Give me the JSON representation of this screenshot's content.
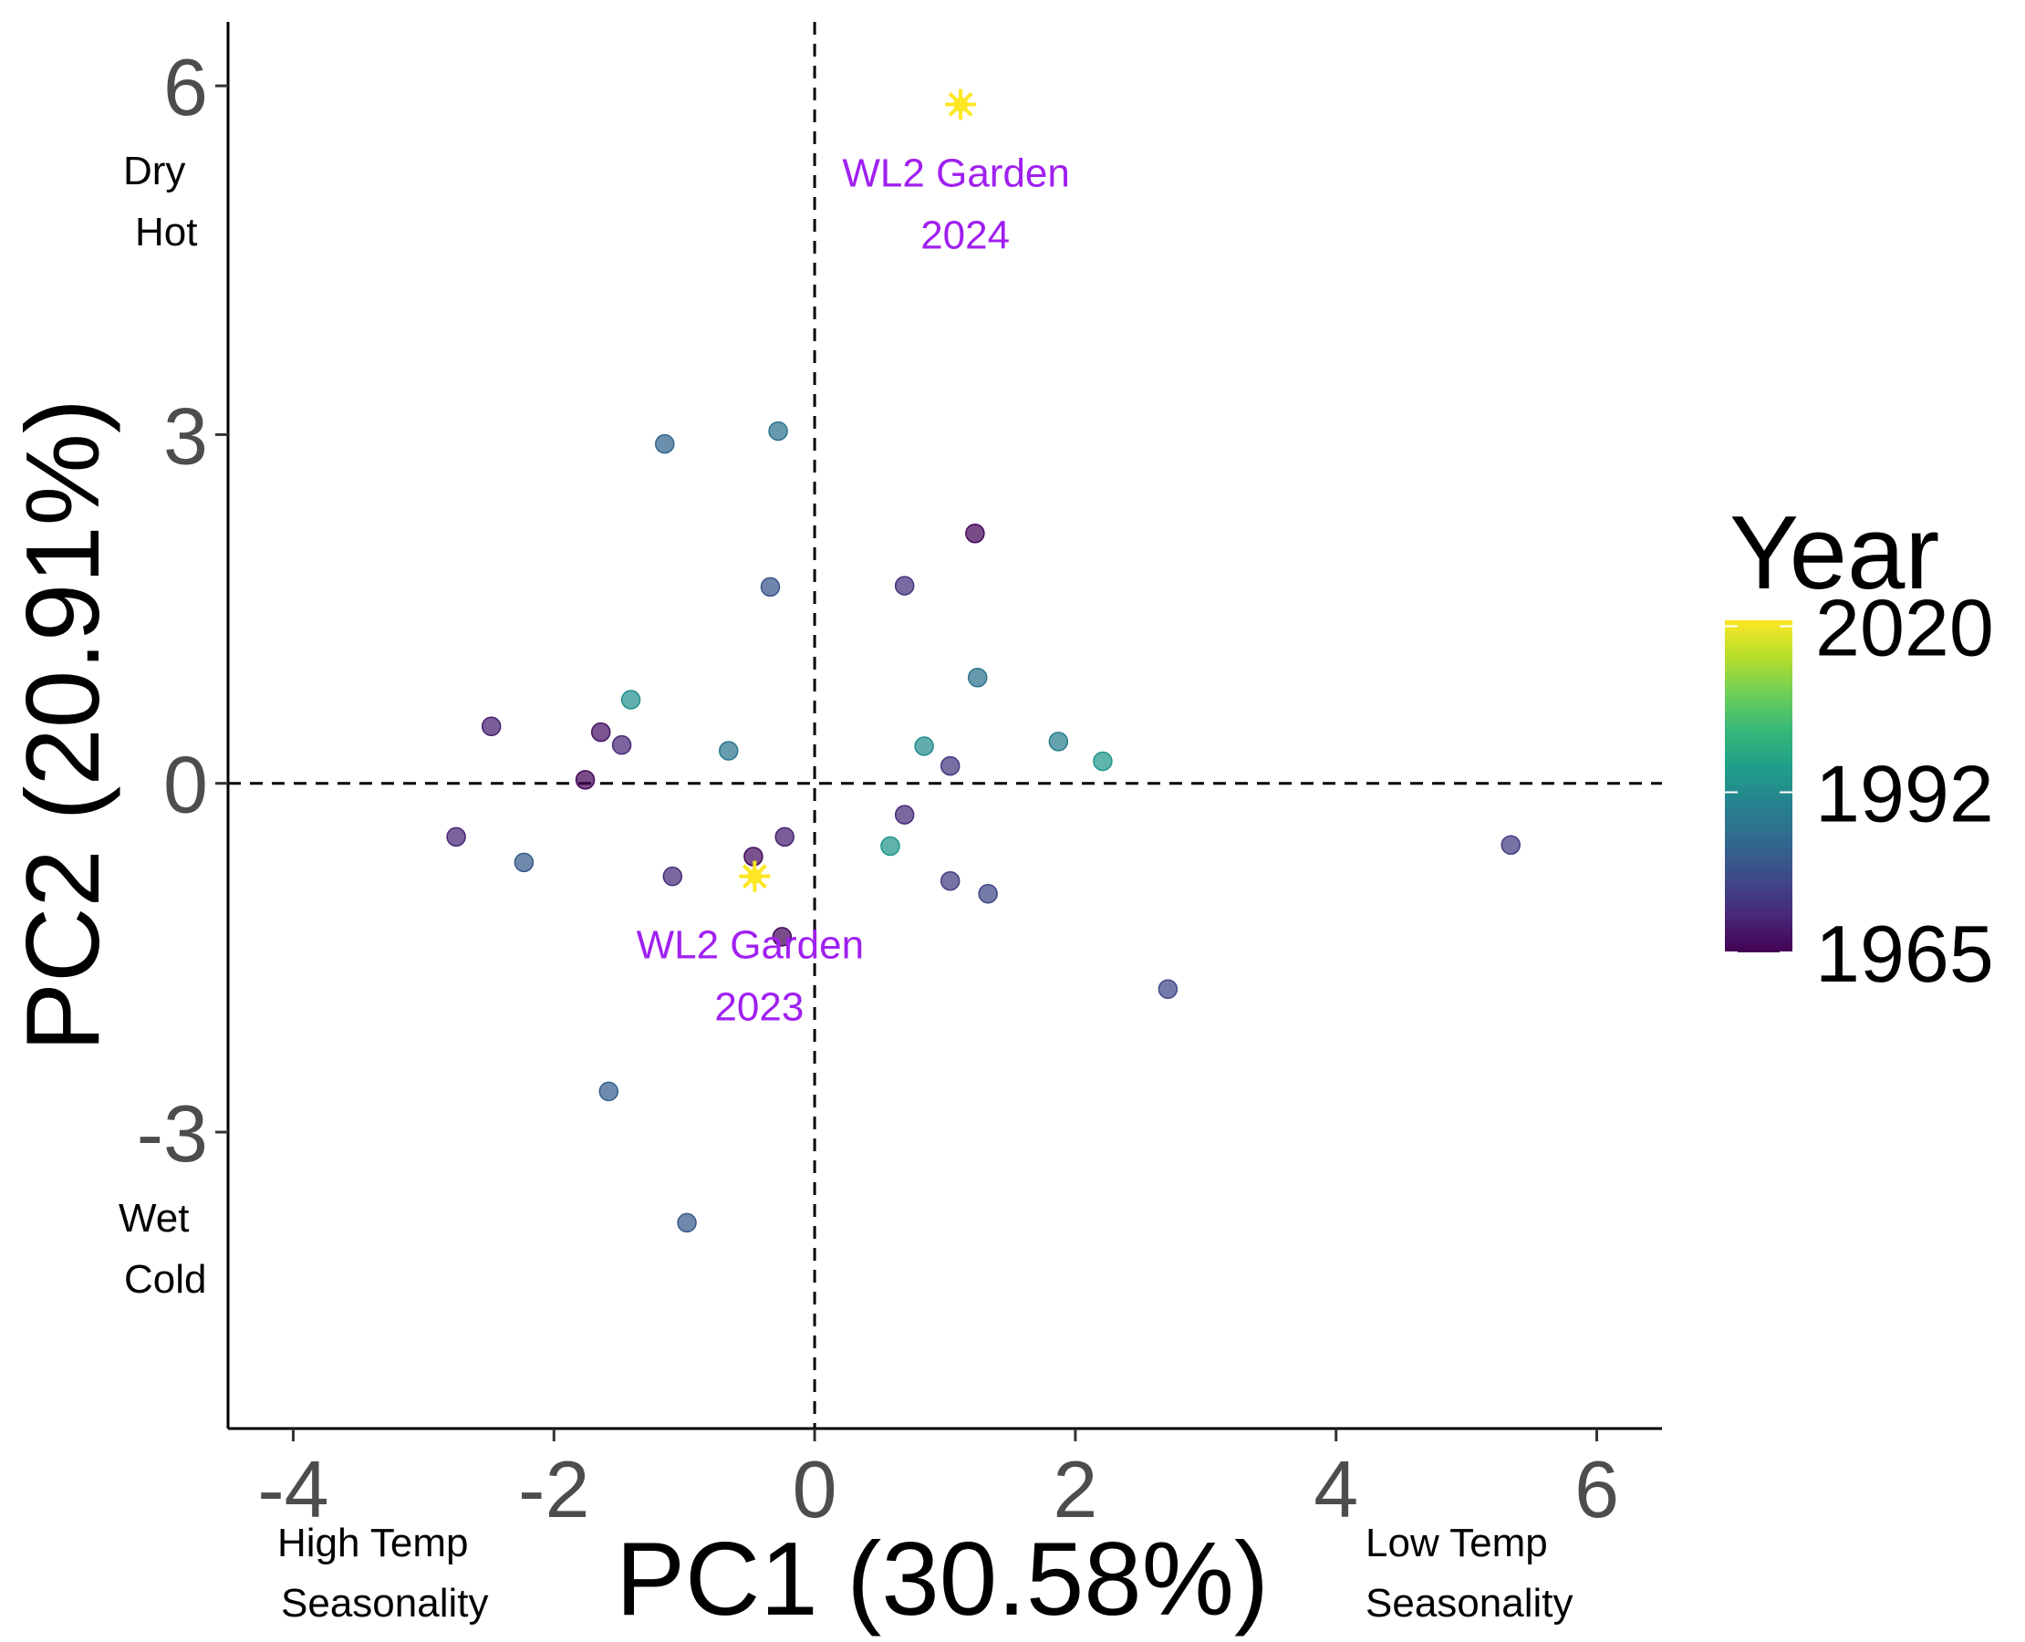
{
  "chart_data": {
    "type": "scatter",
    "xlabel": "PC1 (30.58%)",
    "ylabel": "PC2 (20.91%)",
    "xlim": [
      -4.5,
      6.5
    ],
    "ylim": [
      -5.55,
      6.55
    ],
    "xticks": [
      -4,
      -2,
      0,
      2,
      4,
      6
    ],
    "yticks": [
      -3,
      0,
      3,
      6
    ],
    "grid": false,
    "reference_lines": {
      "x": 0,
      "y": 0,
      "style": "dashed"
    },
    "color_scale": {
      "title": "Year",
      "min": 1965,
      "max": 2021,
      "ticks": [
        1965,
        1992,
        2020
      ],
      "colors": [
        "#440154",
        "#482878",
        "#3e4a89",
        "#31688e",
        "#26828e",
        "#1f9e89",
        "#35b779",
        "#6ece58",
        "#b5de2b",
        "#fde725"
      ]
    },
    "points": [
      {
        "x": -1.15,
        "y": 2.92,
        "year": 1983
      },
      {
        "x": -0.28,
        "y": 3.03,
        "year": 1986
      },
      {
        "x": 1.23,
        "y": 2.15,
        "year": 1966
      },
      {
        "x": -0.34,
        "y": 1.69,
        "year": 1980
      },
      {
        "x": 0.69,
        "y": 1.7,
        "year": 1973
      },
      {
        "x": 1.25,
        "y": 0.91,
        "year": 1986
      },
      {
        "x": -1.41,
        "y": 0.72,
        "year": 1993
      },
      {
        "x": -2.48,
        "y": 0.49,
        "year": 1970
      },
      {
        "x": -1.64,
        "y": 0.44,
        "year": 1968
      },
      {
        "x": -1.48,
        "y": 0.33,
        "year": 1971
      },
      {
        "x": -0.66,
        "y": 0.28,
        "year": 1987
      },
      {
        "x": 0.84,
        "y": 0.32,
        "year": 1992
      },
      {
        "x": 1.04,
        "y": 0.15,
        "year": 1974
      },
      {
        "x": 1.87,
        "y": 0.36,
        "year": 1989
      },
      {
        "x": 2.21,
        "y": 0.19,
        "year": 1995
      },
      {
        "x": -1.76,
        "y": 0.03,
        "year": 1966
      },
      {
        "x": -2.75,
        "y": -0.46,
        "year": 1971
      },
      {
        "x": -2.23,
        "y": -0.68,
        "year": 1981
      },
      {
        "x": -1.09,
        "y": -0.8,
        "year": 1972
      },
      {
        "x": -0.47,
        "y": -0.63,
        "year": 1967
      },
      {
        "x": -0.23,
        "y": -0.46,
        "year": 1970
      },
      {
        "x": 0.69,
        "y": -0.27,
        "year": 1972
      },
      {
        "x": 0.58,
        "y": -0.54,
        "year": 1994
      },
      {
        "x": 1.04,
        "y": -0.84,
        "year": 1975
      },
      {
        "x": 1.33,
        "y": -0.95,
        "year": 1977
      },
      {
        "x": -0.25,
        "y": -1.32,
        "year": 1966
      },
      {
        "x": 2.71,
        "y": -1.77,
        "year": 1977
      },
      {
        "x": 5.34,
        "y": -0.53,
        "year": 1975
      },
      {
        "x": -1.58,
        "y": -2.65,
        "year": 1982
      },
      {
        "x": -0.98,
        "y": -3.78,
        "year": 1981
      }
    ],
    "gardens": [
      {
        "x": 1.12,
        "y": 5.84,
        "label_line1": "WL2 Garden",
        "label_line2": "2024"
      },
      {
        "x": -0.46,
        "y": -0.8,
        "label_line1": "WL2 Garden",
        "label_line2": "2023"
      }
    ],
    "corner_notes": {
      "top_left": [
        "Dry",
        "Hot"
      ],
      "bottom_left": [
        "Wet",
        "Cold"
      ],
      "x_left": [
        "High Temp",
        "Seasonality"
      ],
      "x_right": [
        "Low Temp",
        "Seasonality"
      ]
    },
    "colors": {
      "axis": "#000000",
      "tick_label": "#4d4d4d",
      "annotation": "#a020f0",
      "garden_star": "#fde725"
    }
  }
}
